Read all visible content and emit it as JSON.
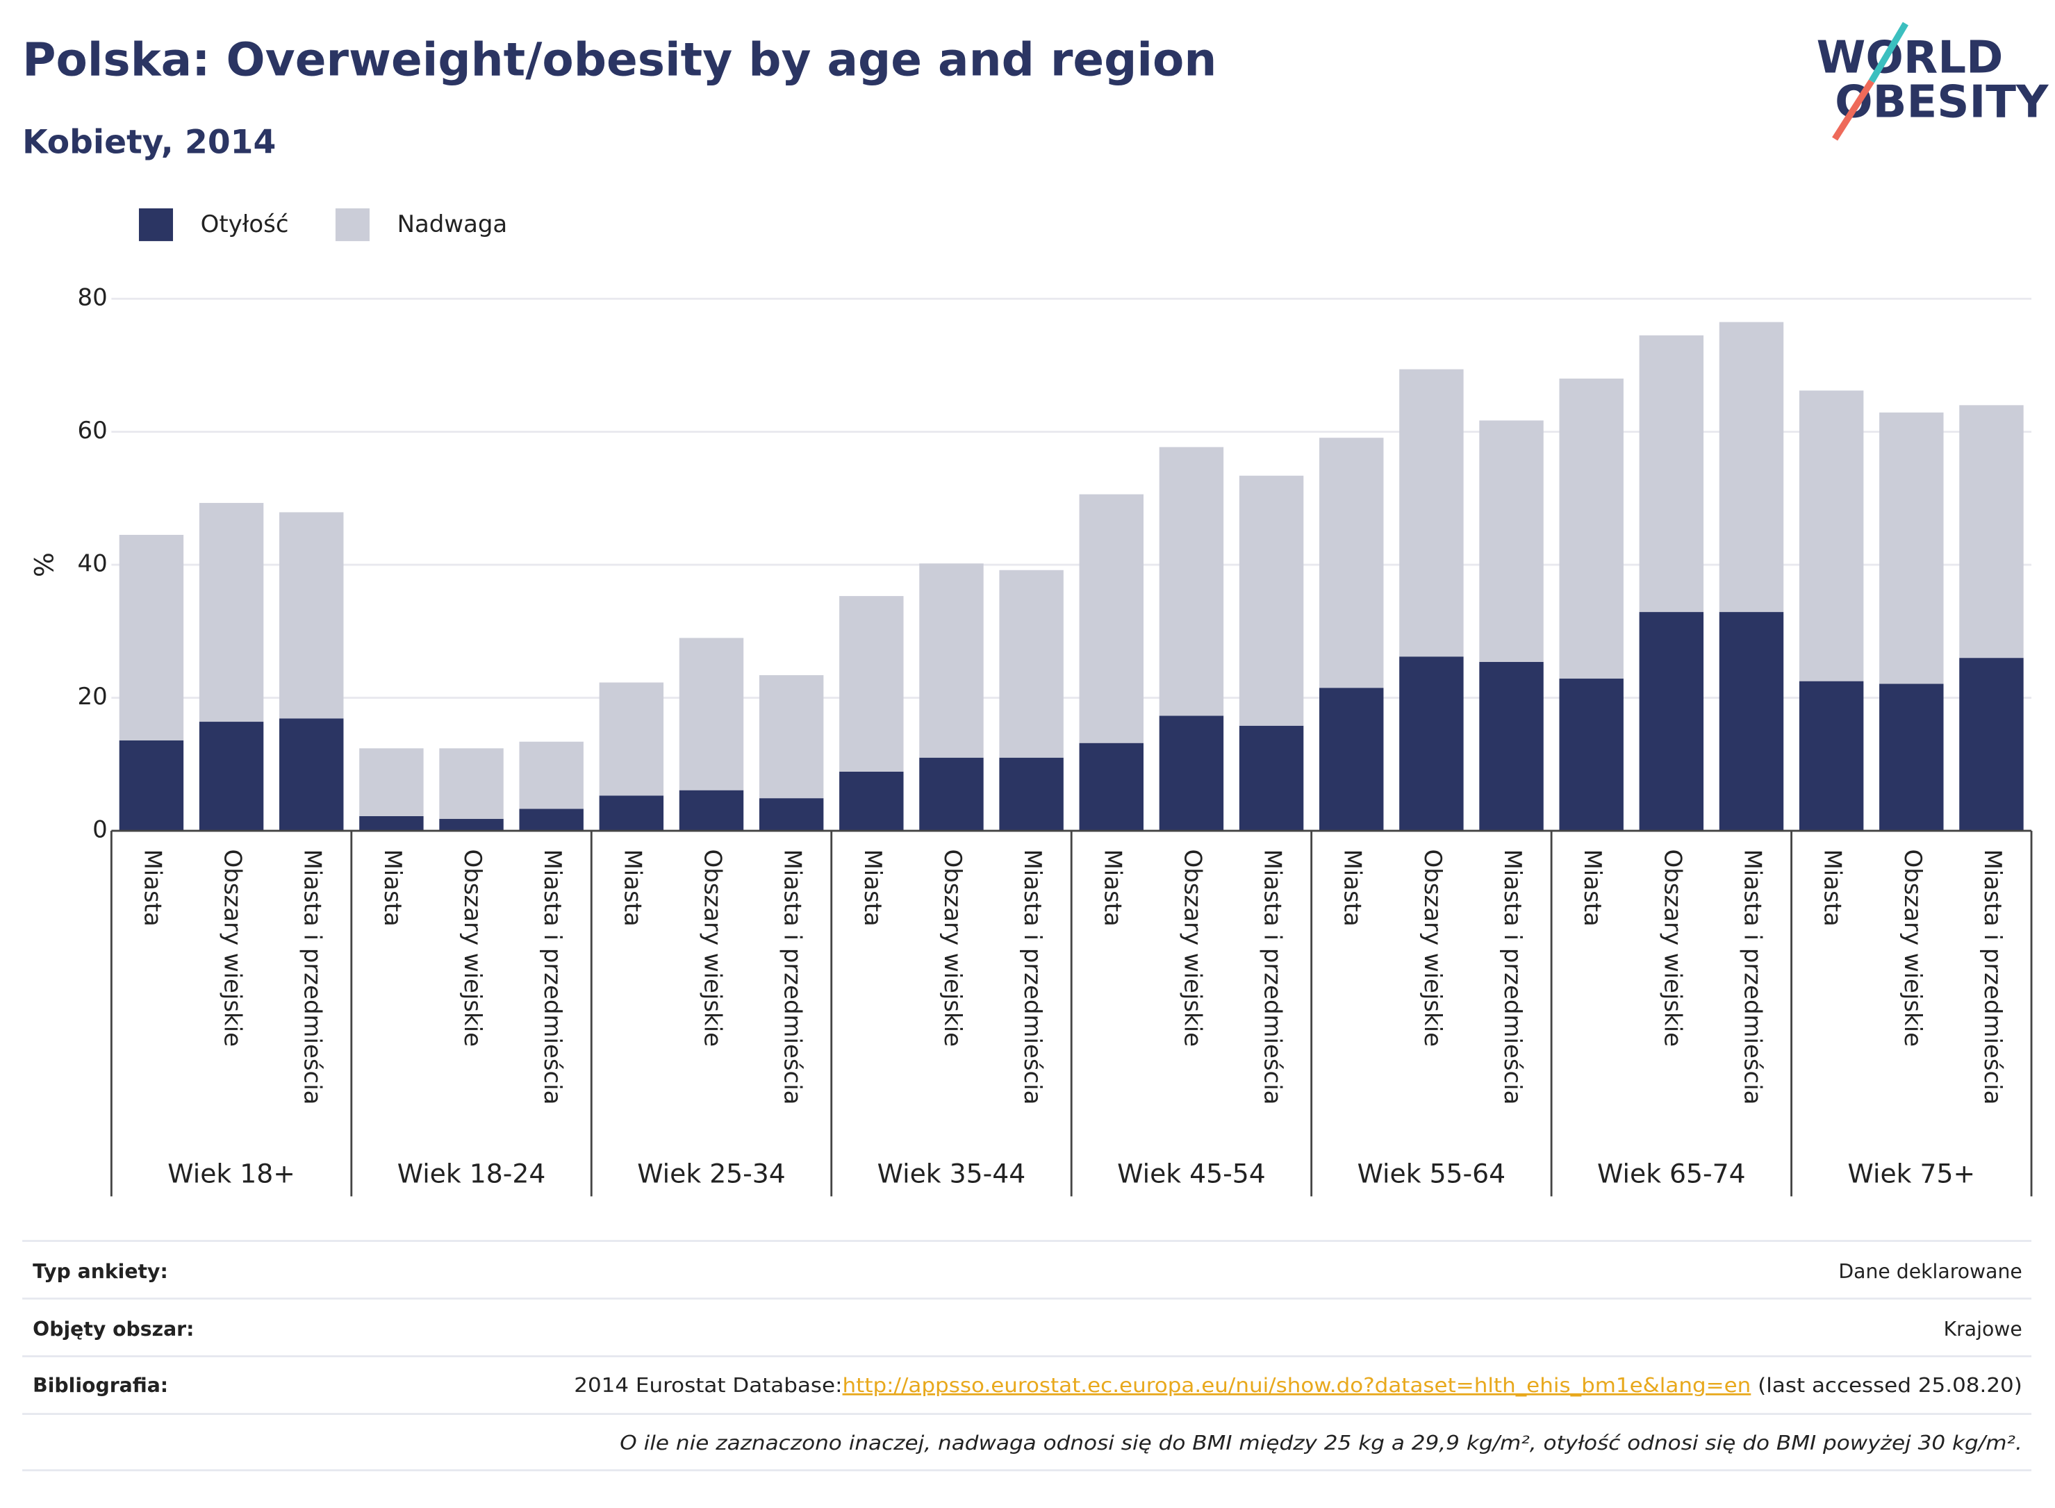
{
  "logo": [
    "WORLD",
    "OBESITY"
  ],
  "chart_data": {
    "type": "stacked-bar",
    "title": "Polska: Overweight/obesity by age and region",
    "subtitle": "Kobiety, 2014",
    "y_label": "%",
    "groups": [
      "Wiek 18+",
      "Wiek 18-24",
      "Wiek 25-34",
      "Wiek 35-44",
      "Wiek 45-54",
      "Wiek 55-64",
      "Wiek 65-74",
      "Wiek 75+"
    ],
    "categories": [
      "Miasta",
      "Obszary wiejskie",
      "Miasta i przedmieścia",
      "Miasta",
      "Obszary wiejskie",
      "Miasta i przedmieścia",
      "Miasta",
      "Obszary wiejskie",
      "Miasta i przedmieścia",
      "Miasta",
      "Obszary wiejskie",
      "Miasta i przedmieścia",
      "Miasta",
      "Obszary wiejskie",
      "Miasta i przedmieścia",
      "Miasta",
      "Obszary wiejskie",
      "Miasta i przedmieścia",
      "Miasta",
      "Obszary wiejskie",
      "Miasta i przedmieścia",
      "Miasta",
      "Obszary wiejskie",
      "Miasta i przedmieścia"
    ],
    "series": [
      {
        "name": "Otyłość",
        "color": "#2b3563",
        "values": [
          13.6,
          16.4,
          16.9,
          2.2,
          1.8,
          3.3,
          5.3,
          6.1,
          4.9,
          8.9,
          11.0,
          11.0,
          13.2,
          17.3,
          15.8,
          21.5,
          26.2,
          25.4,
          22.9,
          32.9,
          32.9,
          22.5,
          22.1,
          26.0
        ]
      },
      {
        "name": "Nadwaga",
        "color": "#cbcdd8",
        "values": [
          30.9,
          32.9,
          31.0,
          10.2,
          10.6,
          10.1,
          17.0,
          22.9,
          18.5,
          26.4,
          29.2,
          28.2,
          37.4,
          40.4,
          37.6,
          37.6,
          43.2,
          36.3,
          45.1,
          41.6,
          43.6,
          43.7,
          40.8,
          38.0
        ]
      }
    ],
    "ylim": [
      0,
      80
    ],
    "yticks": [
      0,
      20,
      40,
      60,
      80
    ],
    "grid": true,
    "legend": "top-left"
  },
  "footer": {
    "rows": [
      [
        "Typ ankiety:",
        "Dane deklarowane"
      ],
      [
        "Objęty obszar:",
        "Krajowe"
      ]
    ],
    "bibliography": {
      "label": "Bibliografia:",
      "text": "2014 Eurostat Database:",
      "link": "http://appsso.eurostat.ec.europa.eu/nui/show.do?dataset=hlth_ehis_bm1e&lang=en",
      "after": " (last accessed 25.08.20)"
    },
    "note": "O ile nie zaznaczono inaczej, nadwaga odnosi się do BMI między 25 kg a 29,9 kg/m², otyłość odnosi się do BMI powyżej 30 kg/m²."
  }
}
